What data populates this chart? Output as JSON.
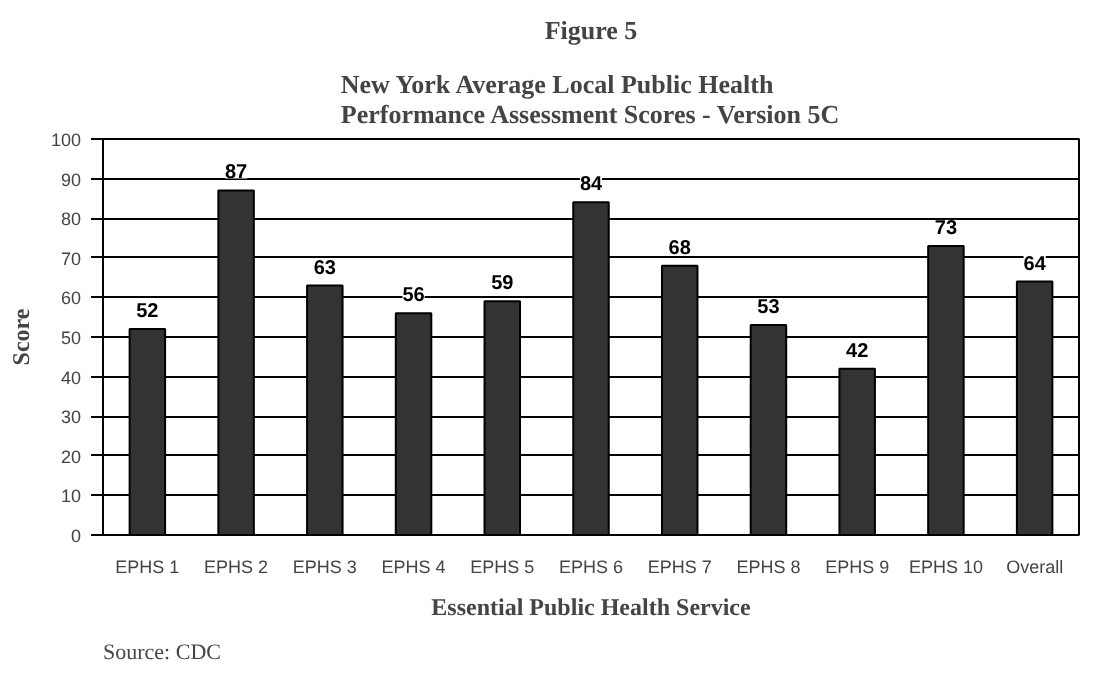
{
  "chart_data": {
    "type": "bar",
    "title": "Figure 5",
    "subtitle": "New York Average Local Public Health\nPerformance Assessment Scores - Version 5C",
    "xlabel": "Essential Public Health Service",
    "ylabel": "Score",
    "categories": [
      "EPHS 1",
      "EPHS 2",
      "EPHS 3",
      "EPHS 4",
      "EPHS 5",
      "EPHS 6",
      "EPHS 7",
      "EPHS 8",
      "EPHS 9",
      "EPHS 10",
      "Overall"
    ],
    "values": [
      52,
      87,
      63,
      56,
      59,
      84,
      68,
      53,
      42,
      73,
      64
    ],
    "color": "#333333",
    "ylim": [
      0,
      100
    ],
    "yticks": [
      0,
      10,
      20,
      30,
      40,
      50,
      60,
      70,
      80,
      90,
      100
    ],
    "grid": "y",
    "data_labels": true,
    "annotations": [
      "Source:  CDC"
    ]
  }
}
